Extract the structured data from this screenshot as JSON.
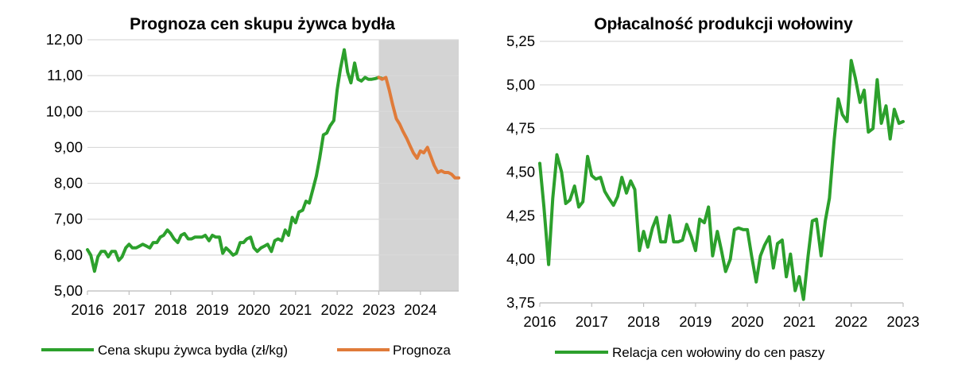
{
  "chart_data": [
    {
      "type": "line",
      "title": "Prognoza cen skupu żywca bydła",
      "xlabel": "",
      "ylabel": "",
      "xlim": [
        2016,
        2024.92
      ],
      "ylim": [
        5.0,
        12.0
      ],
      "ytick_labels": [
        "5,00",
        "6,00",
        "7,00",
        "8,00",
        "9,00",
        "10,00",
        "11,00",
        "12,00"
      ],
      "xtick_labels": [
        "2016",
        "2017",
        "2018",
        "2019",
        "2020",
        "2021",
        "2022",
        "2023",
        "2024"
      ],
      "grid": true,
      "legend_position": "bottom",
      "shaded_region": {
        "x_from": 2023.0,
        "x_to": 2024.92,
        "color": "#d4d4d4"
      },
      "series": [
        {
          "name": "Cena skupu żywca bydła (zł/kg)",
          "color": "#2ca02c",
          "x": [
            2016.0,
            2016.08,
            2016.17,
            2016.25,
            2016.33,
            2016.42,
            2016.5,
            2016.58,
            2016.67,
            2016.75,
            2016.83,
            2016.92,
            2017.0,
            2017.08,
            2017.17,
            2017.25,
            2017.33,
            2017.42,
            2017.5,
            2017.58,
            2017.67,
            2017.75,
            2017.83,
            2017.92,
            2018.0,
            2018.08,
            2018.17,
            2018.25,
            2018.33,
            2018.42,
            2018.5,
            2018.58,
            2018.67,
            2018.75,
            2018.83,
            2018.92,
            2019.0,
            2019.08,
            2019.17,
            2019.25,
            2019.33,
            2019.42,
            2019.5,
            2019.58,
            2019.67,
            2019.75,
            2019.83,
            2019.92,
            2020.0,
            2020.08,
            2020.17,
            2020.25,
            2020.33,
            2020.42,
            2020.5,
            2020.58,
            2020.67,
            2020.75,
            2020.83,
            2020.92,
            2021.0,
            2021.08,
            2021.17,
            2021.25,
            2021.33,
            2021.42,
            2021.5,
            2021.58,
            2021.67,
            2021.75,
            2021.83,
            2021.92,
            2022.0,
            2022.08,
            2022.17,
            2022.25,
            2022.33,
            2022.42,
            2022.5,
            2022.58,
            2022.67,
            2022.75,
            2022.83,
            2022.92,
            2023.0,
            2023.08
          ],
          "values": [
            6.15,
            6.0,
            5.55,
            5.95,
            6.1,
            6.1,
            5.95,
            6.1,
            6.1,
            5.85,
            5.95,
            6.2,
            6.3,
            6.2,
            6.2,
            6.25,
            6.3,
            6.25,
            6.2,
            6.35,
            6.35,
            6.5,
            6.55,
            6.7,
            6.6,
            6.45,
            6.35,
            6.55,
            6.6,
            6.45,
            6.45,
            6.5,
            6.5,
            6.5,
            6.55,
            6.4,
            6.55,
            6.5,
            6.5,
            6.05,
            6.2,
            6.1,
            6.0,
            6.05,
            6.35,
            6.35,
            6.45,
            6.5,
            6.2,
            6.1,
            6.2,
            6.25,
            6.3,
            6.1,
            6.4,
            6.45,
            6.4,
            6.7,
            6.55,
            7.05,
            6.9,
            7.2,
            7.25,
            7.5,
            7.45,
            7.85,
            8.2,
            8.7,
            9.35,
            9.4,
            9.6,
            9.75,
            10.6,
            11.2,
            11.72,
            11.1,
            10.8,
            11.35,
            10.9,
            10.85,
            10.95,
            10.9,
            10.9,
            10.92,
            10.95,
            10.92
          ]
        },
        {
          "name": "Prognoza",
          "color": "#e07b39",
          "x": [
            2023.0,
            2023.08,
            2023.17,
            2023.25,
            2023.33,
            2023.42,
            2023.5,
            2023.58,
            2023.67,
            2023.75,
            2023.83,
            2023.92,
            2024.0,
            2024.08,
            2024.17,
            2024.25,
            2024.33,
            2024.42,
            2024.5,
            2024.58,
            2024.67,
            2024.75,
            2024.83,
            2024.92
          ],
          "values": [
            10.95,
            10.9,
            10.95,
            10.6,
            10.2,
            9.8,
            9.65,
            9.45,
            9.25,
            9.05,
            8.85,
            8.7,
            8.9,
            8.85,
            9.0,
            8.75,
            8.5,
            8.3,
            8.35,
            8.3,
            8.3,
            8.25,
            8.15,
            8.15
          ]
        }
      ]
    },
    {
      "type": "line",
      "title": "Opłacalność produkcji wołowiny",
      "xlabel": "",
      "ylabel": "",
      "xlim": [
        2016,
        2023
      ],
      "ylim": [
        3.75,
        5.25
      ],
      "ytick_labels": [
        "3,75",
        "4,00",
        "4,25",
        "4,50",
        "4,75",
        "5,00",
        "5,25"
      ],
      "xtick_labels": [
        "2016",
        "2017",
        "2018",
        "2019",
        "2020",
        "2021",
        "2022",
        "2023"
      ],
      "grid": true,
      "legend_position": "bottom",
      "series": [
        {
          "name": "Relacja cen wołowiny do cen paszy",
          "color": "#2ca02c",
          "x": [
            2016.0,
            2016.08,
            2016.17,
            2016.25,
            2016.33,
            2016.42,
            2016.5,
            2016.58,
            2016.67,
            2016.75,
            2016.83,
            2016.92,
            2017.0,
            2017.08,
            2017.17,
            2017.25,
            2017.33,
            2017.42,
            2017.5,
            2017.58,
            2017.67,
            2017.75,
            2017.83,
            2017.92,
            2018.0,
            2018.08,
            2018.17,
            2018.25,
            2018.33,
            2018.42,
            2018.5,
            2018.58,
            2018.67,
            2018.75,
            2018.83,
            2018.92,
            2019.0,
            2019.08,
            2019.17,
            2019.25,
            2019.33,
            2019.42,
            2019.5,
            2019.58,
            2019.67,
            2019.75,
            2019.83,
            2019.92,
            2020.0,
            2020.08,
            2020.17,
            2020.25,
            2020.33,
            2020.42,
            2020.5,
            2020.58,
            2020.67,
            2020.75,
            2020.83,
            2020.92,
            2021.0,
            2021.08,
            2021.17,
            2021.25,
            2021.33,
            2021.42,
            2021.5,
            2021.58,
            2021.67,
            2021.75,
            2021.83,
            2021.92,
            2022.0,
            2022.08,
            2022.17,
            2022.25,
            2022.33,
            2022.42,
            2022.5,
            2022.58,
            2022.67,
            2022.75,
            2022.83,
            2022.92,
            2023.0
          ],
          "values": [
            4.55,
            4.3,
            3.97,
            4.35,
            4.6,
            4.5,
            4.32,
            4.34,
            4.42,
            4.3,
            4.33,
            4.59,
            4.48,
            4.46,
            4.47,
            4.39,
            4.35,
            4.31,
            4.36,
            4.47,
            4.38,
            4.45,
            4.4,
            4.05,
            4.16,
            4.07,
            4.18,
            4.24,
            4.1,
            4.1,
            4.25,
            4.1,
            4.1,
            4.11,
            4.2,
            4.13,
            4.05,
            4.23,
            4.21,
            4.3,
            4.02,
            4.16,
            4.05,
            3.93,
            4.0,
            4.17,
            4.18,
            4.17,
            4.17,
            4.02,
            3.87,
            4.02,
            4.08,
            4.13,
            3.95,
            4.09,
            4.11,
            3.9,
            4.03,
            3.82,
            3.9,
            3.77,
            4.02,
            4.22,
            4.23,
            4.02,
            4.22,
            4.35,
            4.68,
            4.92,
            4.83,
            4.79,
            5.14,
            5.04,
            4.9,
            4.97,
            4.73,
            4.75,
            5.03,
            4.78,
            4.88,
            4.69,
            4.86,
            4.78,
            4.79
          ]
        }
      ]
    }
  ]
}
